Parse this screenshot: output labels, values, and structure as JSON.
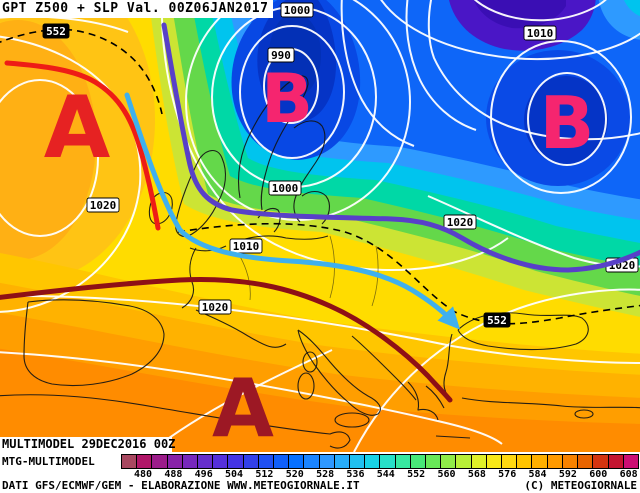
{
  "header": {
    "title": "GPT Z500 + SLP Val. 00Z06JAN2017"
  },
  "map": {
    "markers": [
      {
        "letter": "A"
      },
      {
        "letter": "B"
      },
      {
        "letter": "B"
      },
      {
        "letter": "A"
      }
    ],
    "pressure_labels": [
      {
        "text": "552"
      },
      {
        "text": "1000"
      },
      {
        "text": "990"
      },
      {
        "text": "1010"
      },
      {
        "text": "1000"
      },
      {
        "text": "1020"
      },
      {
        "text": "1010"
      },
      {
        "text": "1020"
      },
      {
        "text": "1020"
      },
      {
        "text": "1020"
      },
      {
        "text": "552"
      }
    ]
  },
  "colors": {
    "high_letter": "#e62222",
    "low_letter": "#f5256f",
    "south_high_letter": "#9c1824",
    "jet_arrow": "#3fb0ee",
    "front_red": "#ee1c16",
    "front_maroon": "#8e1016",
    "trough_purple": "#5840c8"
  },
  "footer": {
    "run_label": "MULTIMODEL 29DEC2016 00Z",
    "model_label": "MTG-MULTIMODEL",
    "credit": "DATI GFS/ECMWF/GEM - ELABORAZIONE WWW.METEOGIORNALE.IT",
    "copyright": "(C) METEOGIORNALE"
  },
  "colorbar": {
    "unit_values": [
      "480",
      "488",
      "496",
      "504",
      "512",
      "520",
      "528",
      "536",
      "544",
      "552",
      "560",
      "568",
      "576",
      "584",
      "592",
      "600",
      "608"
    ],
    "cell_colors": [
      "#a84860",
      "#b01668",
      "#9c1c8a",
      "#8822a8",
      "#7728bc",
      "#662ecc",
      "#5530da",
      "#4434e4",
      "#3240ea",
      "#2050f2",
      "#1160fa",
      "#0670ff",
      "#1a84ff",
      "#2e98ff",
      "#28acfa",
      "#20c0f0",
      "#18d2e6",
      "#28e0c8",
      "#38e8a0",
      "#48e878",
      "#68e858",
      "#90ec48",
      "#b8f038",
      "#e0f028",
      "#f8e818",
      "#ffd810",
      "#ffc400",
      "#ffb000",
      "#ff9a00",
      "#f88200",
      "#e86400",
      "#d43410",
      "#c41430",
      "#cc0e74"
    ]
  }
}
